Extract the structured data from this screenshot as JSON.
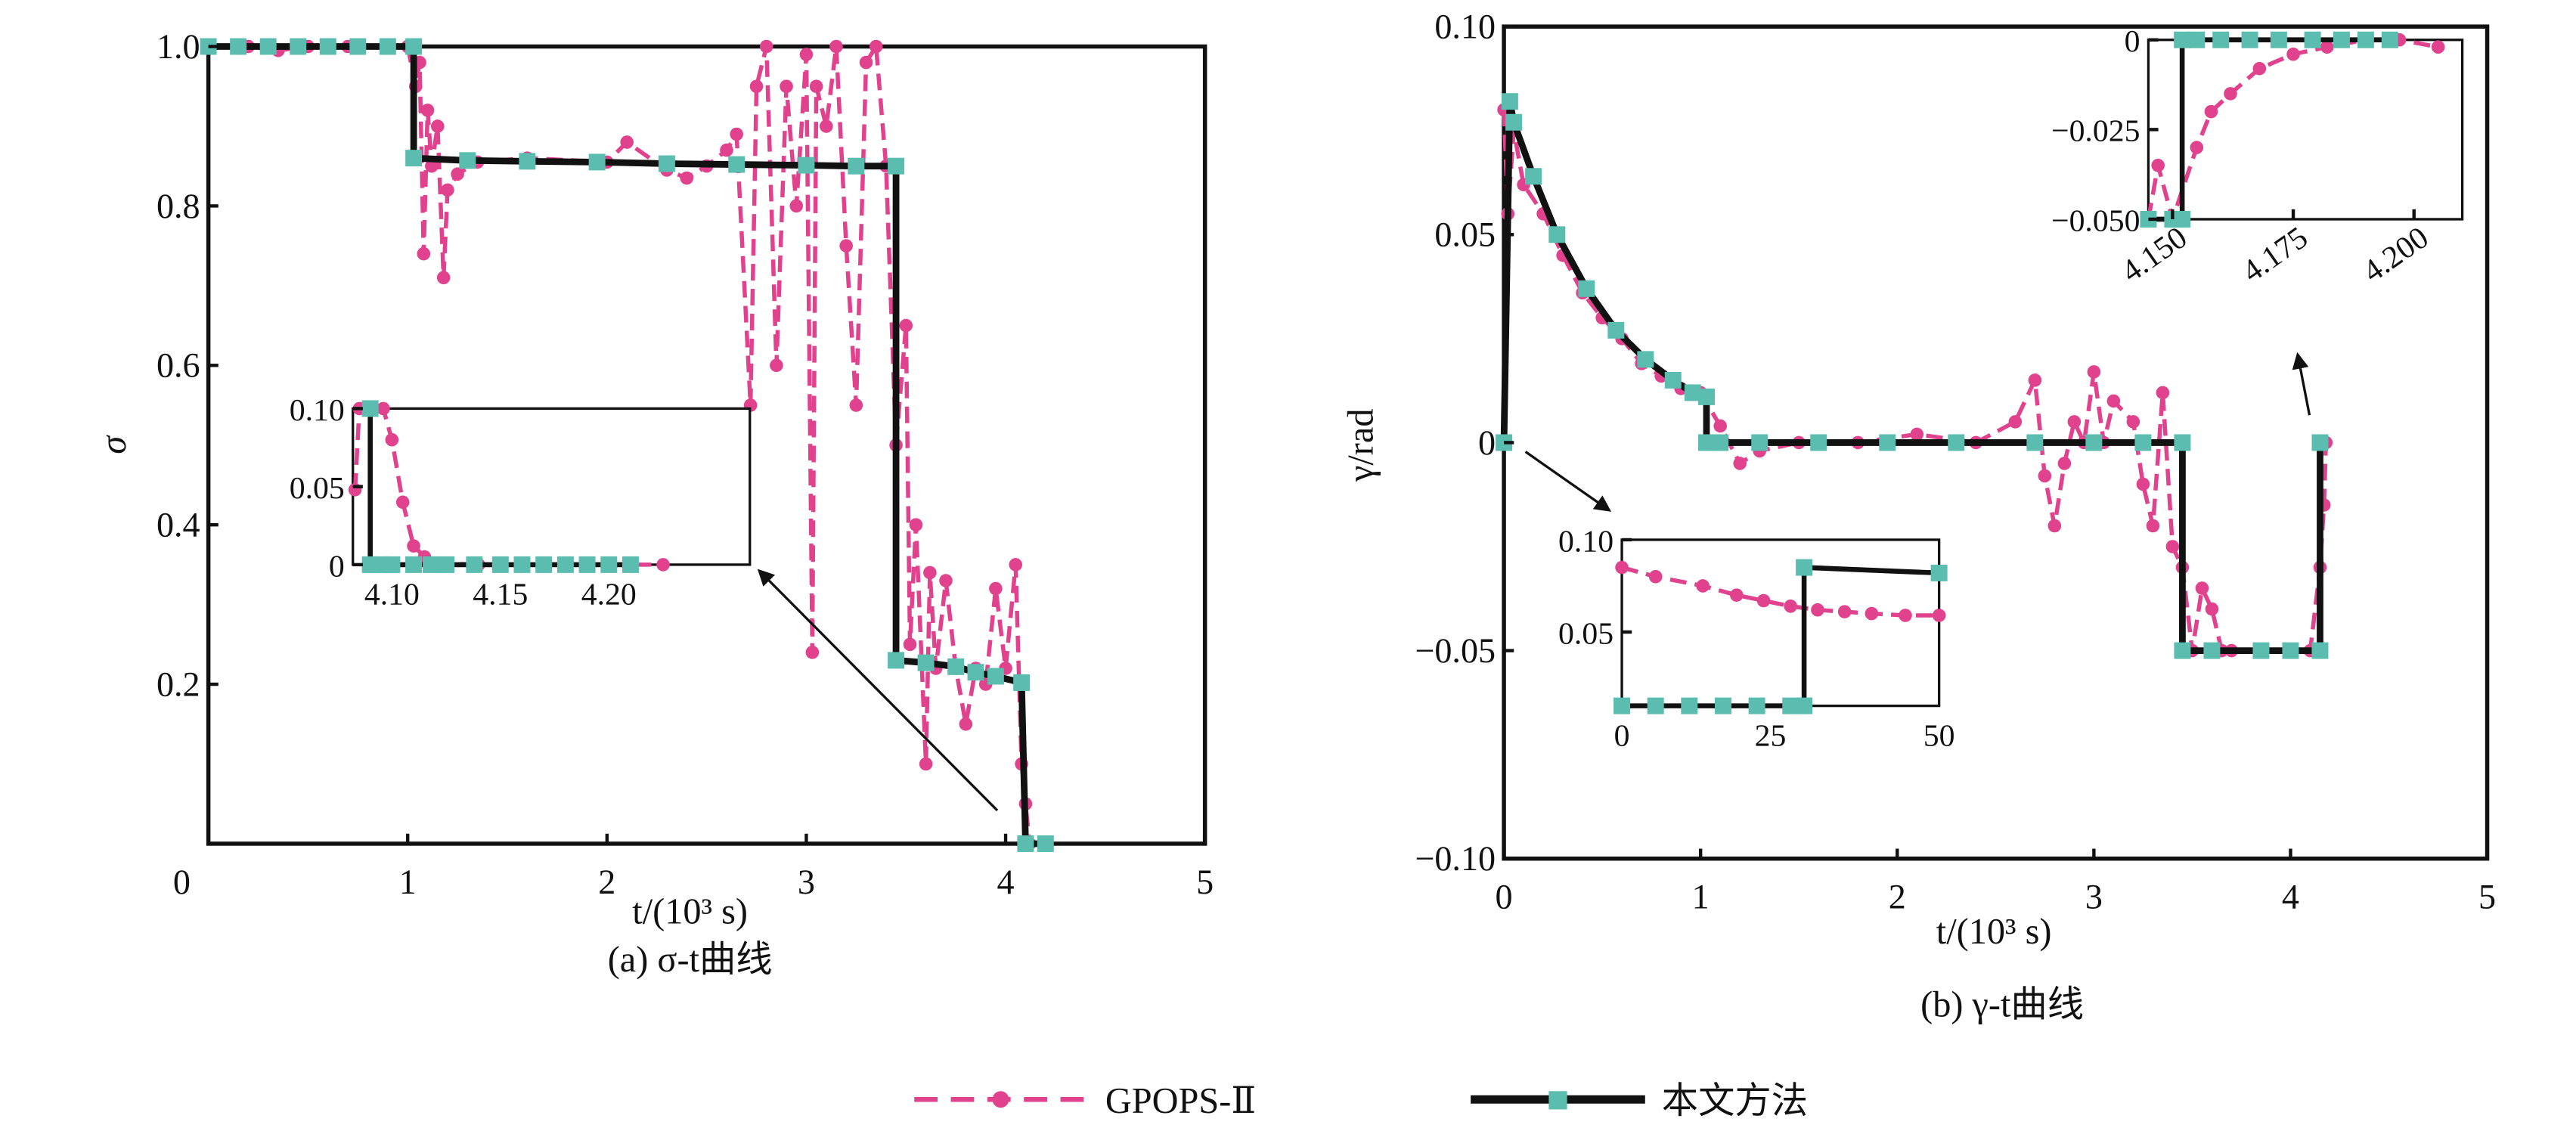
{
  "colors": {
    "gpops": "#E0428E",
    "proposed_line": "#111111",
    "proposed_marker": "#5BBDB0"
  },
  "legend": {
    "gpops": "GPOPS-Ⅱ",
    "proposed": "本文方法"
  },
  "chart_data": [
    {
      "id": "a",
      "type": "line",
      "caption": "(a) σ-t曲线",
      "xlabel": "t/(10³ s)",
      "ylabel": "σ",
      "xlim": [
        0,
        5
      ],
      "ylim": [
        0,
        1
      ],
      "xticks": [
        "0",
        "1",
        "2",
        "3",
        "4",
        "5"
      ],
      "yticks": [
        "0.2",
        "0.4",
        "0.6",
        "0.8",
        "1.0"
      ],
      "series": [
        {
          "name": "GPOPS-Ⅱ",
          "points": [
            [
              0,
              1
            ],
            [
              0.2,
              1
            ],
            [
              0.35,
              0.995
            ],
            [
              0.5,
              1
            ],
            [
              0.7,
              1
            ],
            [
              0.9,
              1
            ],
            [
              1.0,
              1
            ],
            [
              1.04,
              0.95
            ],
            [
              1.06,
              0.98
            ],
            [
              1.08,
              0.74
            ],
            [
              1.1,
              0.92
            ],
            [
              1.12,
              0.85
            ],
            [
              1.15,
              0.9
            ],
            [
              1.18,
              0.71
            ],
            [
              1.2,
              0.82
            ],
            [
              1.25,
              0.84
            ],
            [
              1.35,
              0.855
            ],
            [
              1.6,
              0.86
            ],
            [
              2.0,
              0.855
            ],
            [
              2.1,
              0.88
            ],
            [
              2.3,
              0.845
            ],
            [
              2.4,
              0.835
            ],
            [
              2.5,
              0.85
            ],
            [
              2.6,
              0.87
            ],
            [
              2.65,
              0.89
            ],
            [
              2.72,
              0.55
            ],
            [
              2.75,
              0.95
            ],
            [
              2.8,
              1.0
            ],
            [
              2.85,
              0.6
            ],
            [
              2.9,
              0.95
            ],
            [
              2.95,
              0.8
            ],
            [
              3.0,
              0.99
            ],
            [
              3.03,
              0.24
            ],
            [
              3.05,
              0.95
            ],
            [
              3.1,
              0.9
            ],
            [
              3.15,
              1.0
            ],
            [
              3.2,
              0.75
            ],
            [
              3.25,
              0.55
            ],
            [
              3.3,
              0.98
            ],
            [
              3.35,
              1.0
            ],
            [
              3.4,
              0.85
            ],
            [
              3.45,
              0.5
            ],
            [
              3.5,
              0.65
            ],
            [
              3.52,
              0.25
            ],
            [
              3.55,
              0.4
            ],
            [
              3.6,
              0.1
            ],
            [
              3.62,
              0.34
            ],
            [
              3.65,
              0.22
            ],
            [
              3.7,
              0.33
            ],
            [
              3.75,
              0.22
            ],
            [
              3.8,
              0.15
            ],
            [
              3.85,
              0.22
            ],
            [
              3.9,
              0.2
            ],
            [
              3.95,
              0.32
            ],
            [
              4.0,
              0.22
            ],
            [
              4.05,
              0.35
            ],
            [
              4.08,
              0.1
            ],
            [
              4.1,
              0.05
            ],
            [
              4.12,
              0
            ]
          ]
        },
        {
          "name": "本文方法",
          "points": [
            [
              0,
              1
            ],
            [
              0.15,
              1
            ],
            [
              0.3,
              1
            ],
            [
              0.45,
              1
            ],
            [
              0.6,
              1
            ],
            [
              0.75,
              1
            ],
            [
              0.9,
              1
            ],
            [
              1.03,
              1
            ],
            [
              1.03,
              0.86
            ],
            [
              1.3,
              0.857
            ],
            [
              1.6,
              0.856
            ],
            [
              1.95,
              0.855
            ],
            [
              2.3,
              0.853
            ],
            [
              2.65,
              0.852
            ],
            [
              3.0,
              0.851
            ],
            [
              3.25,
              0.85
            ],
            [
              3.45,
              0.85
            ],
            [
              3.45,
              0.23
            ],
            [
              3.6,
              0.227
            ],
            [
              3.75,
              0.222
            ],
            [
              3.85,
              0.215
            ],
            [
              3.95,
              0.21
            ],
            [
              4.08,
              0.202
            ],
            [
              4.1,
              0
            ],
            [
              4.2,
              0
            ]
          ]
        }
      ],
      "inset": {
        "xlim": [
          4.082,
          4.265
        ],
        "ylim": [
          0,
          0.1
        ],
        "xticks": [
          "4.10",
          "4.15",
          "4.20"
        ],
        "yticks": [
          "0",
          "0.05",
          "0.10"
        ],
        "series": [
          {
            "name": "GPOPS-Ⅱ",
            "points": [
              [
                4.083,
                0.048
              ],
              [
                4.085,
                0.1
              ],
              [
                4.096,
                0.1
              ],
              [
                4.1,
                0.08
              ],
              [
                4.105,
                0.04
              ],
              [
                4.11,
                0.012
              ],
              [
                4.115,
                0.005
              ],
              [
                4.12,
                0.001
              ],
              [
                4.14,
                0
              ],
              [
                4.17,
                0
              ],
              [
                4.2,
                0
              ],
              [
                4.225,
                0
              ]
            ]
          },
          {
            "name": "本文方法",
            "points": [
              [
                4.09,
                0.1
              ],
              [
                4.09,
                0
              ],
              [
                4.095,
                0
              ],
              [
                4.1,
                0
              ],
              [
                4.11,
                0
              ],
              [
                4.118,
                0
              ],
              [
                4.125,
                0
              ],
              [
                4.138,
                0
              ],
              [
                4.15,
                0
              ],
              [
                4.16,
                0
              ],
              [
                4.17,
                0
              ],
              [
                4.18,
                0
              ],
              [
                4.19,
                0
              ],
              [
                4.2,
                0
              ],
              [
                4.21,
                0
              ]
            ]
          }
        ]
      }
    },
    {
      "id": "b",
      "type": "line",
      "caption": "(b) γ-t曲线",
      "xlabel": "t/(10³ s)",
      "ylabel": "γ/rad",
      "xlim": [
        0,
        5
      ],
      "ylim": [
        -0.1,
        0.1
      ],
      "xticks": [
        "0",
        "1",
        "2",
        "3",
        "4",
        "5"
      ],
      "yticks": [
        "−0.10",
        "−0.05",
        "0",
        "0.05",
        "0.10"
      ],
      "series": [
        {
          "name": "GPOPS-Ⅱ",
          "points": [
            [
              0,
              0.08
            ],
            [
              0.02,
              0.055
            ],
            [
              0.05,
              0.075
            ],
            [
              0.1,
              0.062
            ],
            [
              0.2,
              0.055
            ],
            [
              0.3,
              0.045
            ],
            [
              0.4,
              0.036
            ],
            [
              0.5,
              0.03
            ],
            [
              0.6,
              0.025
            ],
            [
              0.7,
              0.019
            ],
            [
              0.8,
              0.016
            ],
            [
              0.9,
              0.013
            ],
            [
              1.0,
              0.012
            ],
            [
              1.1,
              0.004
            ],
            [
              1.2,
              -0.005
            ],
            [
              1.3,
              -0.002
            ],
            [
              1.5,
              0
            ],
            [
              1.8,
              0
            ],
            [
              2.1,
              0.002
            ],
            [
              2.4,
              0
            ],
            [
              2.6,
              0.005
            ],
            [
              2.7,
              0.015
            ],
            [
              2.75,
              -0.008
            ],
            [
              2.8,
              -0.02
            ],
            [
              2.85,
              -0.005
            ],
            [
              2.9,
              0.005
            ],
            [
              2.95,
              0
            ],
            [
              3.0,
              0.017
            ],
            [
              3.05,
              0
            ],
            [
              3.1,
              0.01
            ],
            [
              3.2,
              0.005
            ],
            [
              3.25,
              -0.01
            ],
            [
              3.3,
              -0.02
            ],
            [
              3.35,
              0.012
            ],
            [
              3.4,
              -0.025
            ],
            [
              3.45,
              -0.03
            ],
            [
              3.5,
              -0.05
            ],
            [
              3.55,
              -0.035
            ],
            [
              3.6,
              -0.04
            ],
            [
              3.65,
              -0.05
            ],
            [
              3.7,
              -0.05
            ],
            [
              4.1,
              -0.05
            ],
            [
              4.15,
              -0.03
            ],
            [
              4.17,
              -0.015
            ],
            [
              4.18,
              0
            ]
          ]
        },
        {
          "name": "本文方法",
          "points": [
            [
              0,
              0
            ],
            [
              0.03,
              0.082
            ],
            [
              0.05,
              0.077
            ],
            [
              0.15,
              0.064
            ],
            [
              0.27,
              0.05
            ],
            [
              0.42,
              0.037
            ],
            [
              0.57,
              0.027
            ],
            [
              0.72,
              0.02
            ],
            [
              0.86,
              0.015
            ],
            [
              0.96,
              0.012
            ],
            [
              1.03,
              0.011
            ],
            [
              1.03,
              0
            ],
            [
              1.1,
              0
            ],
            [
              1.3,
              0
            ],
            [
              1.6,
              0
            ],
            [
              1.95,
              0
            ],
            [
              2.3,
              0
            ],
            [
              2.7,
              0
            ],
            [
              3.0,
              0
            ],
            [
              3.25,
              0
            ],
            [
              3.45,
              0
            ],
            [
              3.45,
              -0.05
            ],
            [
              3.6,
              -0.05
            ],
            [
              3.85,
              -0.05
            ],
            [
              4.0,
              -0.05
            ],
            [
              4.15,
              -0.05
            ],
            [
              4.15,
              0
            ]
          ]
        }
      ],
      "inset_top": {
        "xlim": [
          4.145,
          4.21
        ],
        "ylim": [
          -0.05,
          0
        ],
        "xticks": [
          "4.150",
          "4.175",
          "4.200"
        ],
        "yticks": [
          "−0.050",
          "−0.025",
          "0"
        ],
        "series": [
          {
            "name": "GPOPS-Ⅱ",
            "points": [
              [
                4.145,
                -0.05
              ],
              [
                4.147,
                -0.035
              ],
              [
                4.15,
                -0.05
              ],
              [
                4.155,
                -0.03
              ],
              [
                4.158,
                -0.02
              ],
              [
                4.162,
                -0.015
              ],
              [
                4.168,
                -0.008
              ],
              [
                4.175,
                -0.004
              ],
              [
                4.182,
                -0.002
              ],
              [
                4.19,
                0
              ],
              [
                4.197,
                0
              ],
              [
                4.205,
                -0.002
              ]
            ]
          },
          {
            "name": "本文方法",
            "points": [
              [
                4.145,
                -0.05
              ],
              [
                4.15,
                -0.05
              ],
              [
                4.152,
                -0.05
              ],
              [
                4.152,
                0
              ],
              [
                4.155,
                0
              ],
              [
                4.16,
                0
              ],
              [
                4.166,
                0
              ],
              [
                4.172,
                0
              ],
              [
                4.179,
                0
              ],
              [
                4.185,
                0
              ],
              [
                4.19,
                0
              ],
              [
                4.195,
                0
              ]
            ]
          }
        ]
      },
      "inset_bottom": {
        "xlim": [
          3,
          50
        ],
        "ylim": [
          0.01,
          0.1
        ],
        "xticks": [
          "0",
          "25",
          "50"
        ],
        "yticks": [
          "0.05",
          "0.10"
        ],
        "series": [
          {
            "name": "GPOPS-Ⅱ",
            "points": [
              [
                3,
                0.085
              ],
              [
                8,
                0.08
              ],
              [
                15,
                0.075
              ],
              [
                20,
                0.07
              ],
              [
                24,
                0.067
              ],
              [
                28,
                0.064
              ],
              [
                32,
                0.062
              ],
              [
                36,
                0.061
              ],
              [
                40,
                0.06
              ],
              [
                45,
                0.059
              ],
              [
                50,
                0.059
              ]
            ]
          },
          {
            "name": "本文方法",
            "points": [
              [
                3,
                0.01
              ],
              [
                8,
                0.01
              ],
              [
                13,
                0.01
              ],
              [
                18,
                0.01
              ],
              [
                23,
                0.01
              ],
              [
                28,
                0.01
              ],
              [
                30,
                0.01
              ],
              [
                30,
                0.085
              ],
              [
                50,
                0.082
              ]
            ]
          }
        ]
      }
    }
  ]
}
